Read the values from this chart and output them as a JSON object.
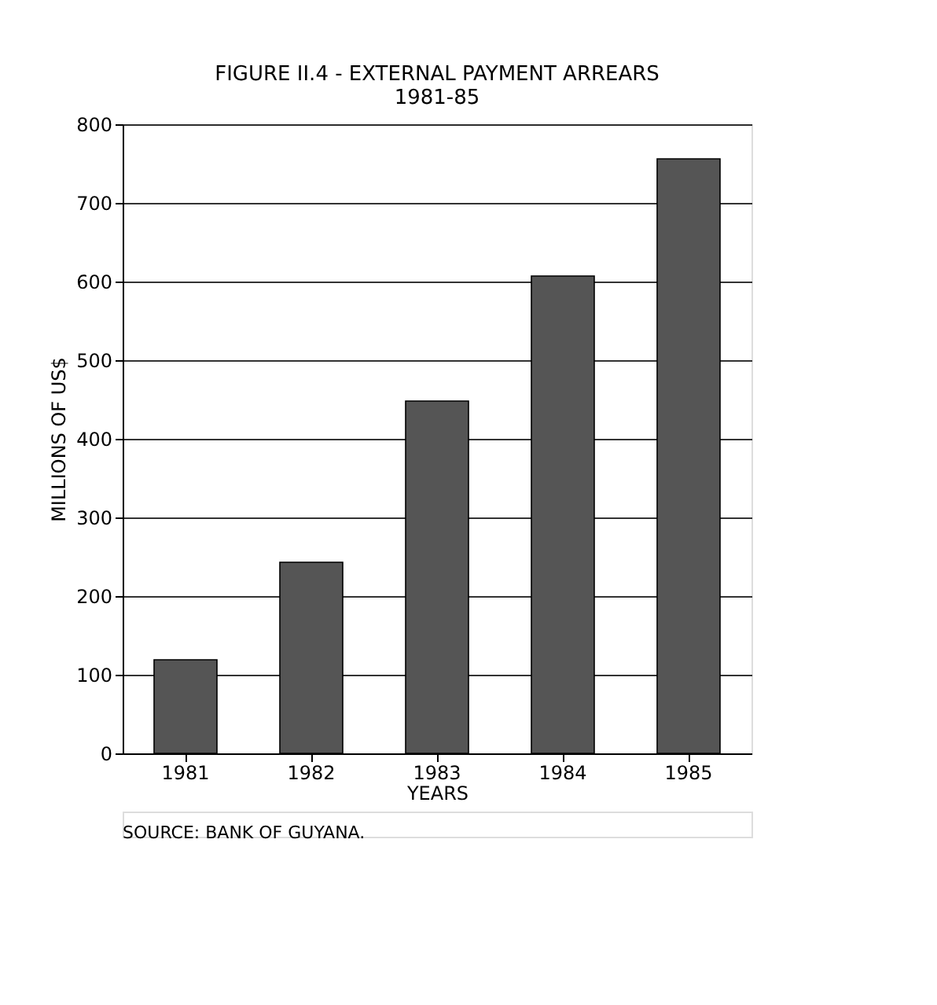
{
  "chart_data": {
    "type": "bar",
    "title": [
      "FIGURE II.4 - EXTERNAL PAYMENT ARREARS",
      "1981-85"
    ],
    "categories": [
      "1981",
      "1982",
      "1983",
      "1984",
      "1985"
    ],
    "values": [
      119,
      243,
      448,
      607,
      756
    ],
    "color": "#555555",
    "xlabel": "YEARS",
    "ylabel": "MILLIONS OF US$",
    "ylim": [
      0,
      800
    ],
    "yticks": [
      0,
      100,
      200,
      300,
      400,
      500,
      600,
      700,
      800
    ],
    "grid": "y",
    "annotations": [
      "SOURCE: BANK OF GUYANA."
    ]
  }
}
